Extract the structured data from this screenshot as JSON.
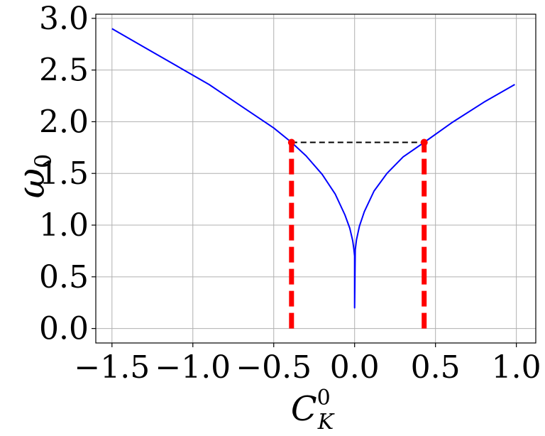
{
  "chart_data": {
    "type": "line",
    "title": "",
    "xlabel": "C",
    "xlabel_sup": "0",
    "xlabel_sub": "K",
    "ylabel": "ω",
    "ylabel_sub": "0",
    "xlim": [
      -1.6,
      1.12
    ],
    "ylim": [
      -0.14,
      3.04
    ],
    "xticks": [
      -1.5,
      -1.0,
      -0.5,
      0.0,
      0.5,
      1.0
    ],
    "xtick_labels": [
      "−1.5",
      "−1.0",
      "−0.5",
      "0.0",
      "0.5",
      "1.0"
    ],
    "yticks": [
      0.0,
      0.5,
      1.0,
      1.5,
      2.0,
      2.5,
      3.0
    ],
    "ytick_labels": [
      "0.0",
      "0.5",
      "1.0",
      "1.5",
      "2.0",
      "2.5",
      "3.0"
    ],
    "grid": true,
    "legend": null,
    "series": [
      {
        "style": "solid",
        "color": "#0000ff",
        "x": [
          -1.5,
          -1.3,
          -1.1,
          -0.9,
          -0.7,
          -0.5,
          -0.39,
          -0.3,
          -0.2,
          -0.12,
          -0.06,
          -0.03,
          -0.012,
          -0.004,
          0.0,
          0.0,
          0.004,
          0.012,
          0.03,
          0.06,
          0.12,
          0.2,
          0.3,
          0.43,
          0.6,
          0.8,
          0.99
        ],
        "y": [
          2.9,
          2.72,
          2.54,
          2.36,
          2.15,
          1.94,
          1.8,
          1.67,
          1.49,
          1.3,
          1.1,
          0.97,
          0.85,
          0.76,
          0.7,
          0.2,
          0.76,
          0.86,
          0.99,
          1.13,
          1.33,
          1.5,
          1.66,
          1.8,
          1.99,
          2.19,
          2.36
        ]
      },
      {
        "style": "dashed",
        "color": "#000000",
        "x": [
          -0.39,
          0.43
        ],
        "y": [
          1.8,
          1.8
        ]
      },
      {
        "style": "thick-dashed",
        "color": "#ff0000",
        "x": [
          -0.39,
          -0.39
        ],
        "y": [
          0.0,
          1.8
        ]
      },
      {
        "style": "thick-dashed",
        "color": "#ff0000",
        "x": [
          0.43,
          0.43
        ],
        "y": [
          0.0,
          1.8
        ]
      }
    ],
    "points": [
      {
        "x": -0.39,
        "y": 1.8,
        "color": "#ff0000"
      },
      {
        "x": 0.43,
        "y": 1.8,
        "color": "#ff0000"
      }
    ]
  }
}
